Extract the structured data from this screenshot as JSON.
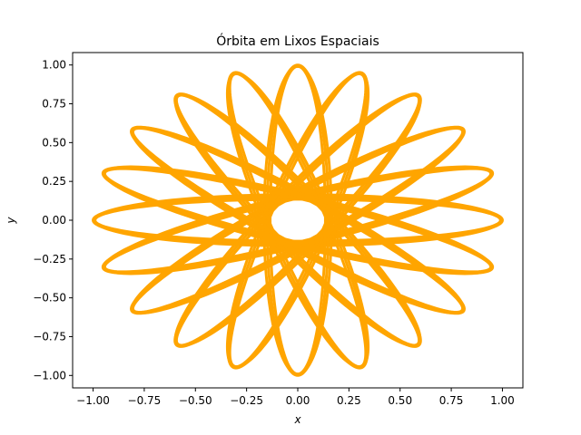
{
  "chart_data": {
    "type": "line",
    "title": "Órbita em Lixos Espaciais",
    "xlabel": "x",
    "ylabel": "y",
    "xlim": [
      -1.1,
      1.1
    ],
    "ylim": [
      -1.08,
      1.08
    ],
    "xticks": [
      -1.0,
      -0.75,
      -0.5,
      -0.25,
      0.0,
      0.25,
      0.5,
      0.75,
      1.0
    ],
    "xtick_labels": [
      "−1.00",
      "−0.75",
      "−0.50",
      "−0.25",
      "0.00",
      "0.25",
      "0.50",
      "0.75",
      "1.00"
    ],
    "yticks": [
      -1.0,
      -0.75,
      -0.5,
      -0.25,
      0.0,
      0.25,
      0.5,
      0.75,
      1.0
    ],
    "ytick_labels": [
      "−1.00",
      "−0.75",
      "−0.50",
      "−0.25",
      "0.00",
      "0.25",
      "0.50",
      "0.75",
      "1.00"
    ],
    "grid": false,
    "legend": false,
    "series": [
      {
        "color": "#ffa500",
        "shape": "rosette of rotating ellipses",
        "ellipse_count": 10,
        "semi_major": 1.0,
        "semi_minor": 0.15,
        "band_thickness": 0.03
      }
    ]
  }
}
